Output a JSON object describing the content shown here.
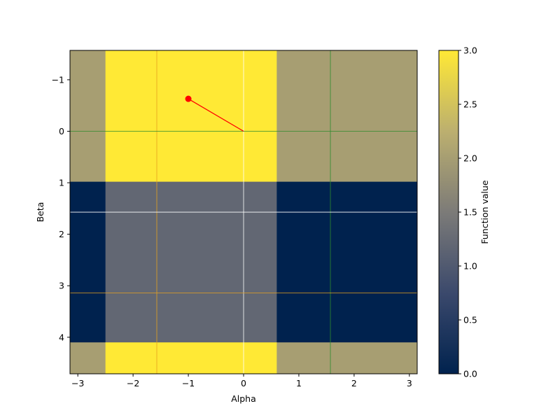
{
  "chart_data": {
    "type": "heatmap",
    "xlabel": "Alpha",
    "ylabel": "Beta",
    "colorbar_label": "Function value",
    "colormap": "cividis",
    "xlim": [
      -3.1416,
      3.1416
    ],
    "ylim": [
      4.71,
      -1.57
    ],
    "x_ticks": [
      -3,
      -2,
      -1,
      0,
      1,
      2,
      3
    ],
    "x_tick_labels": [
      "−3",
      "−2",
      "−1",
      "0",
      "1",
      "2",
      "3"
    ],
    "y_ticks": [
      -1,
      0,
      1,
      2,
      3,
      4
    ],
    "y_tick_labels": [
      "−1",
      "0",
      "1",
      "2",
      "3",
      "4"
    ],
    "x_edges": [
      -3.1416,
      -2.5,
      0.6,
      3.1416
    ],
    "y_edges": [
      -1.57,
      0.98,
      4.1,
      4.71
    ],
    "values": [
      [
        2,
        3,
        2
      ],
      [
        0,
        1.2,
        0
      ],
      [
        2,
        3,
        2
      ]
    ],
    "value_range": [
      0,
      3
    ],
    "colorbar_ticks": [
      0.0,
      0.5,
      1.0,
      1.5,
      2.0,
      2.5,
      3.0
    ],
    "colorbar_tick_labels": [
      "0.0",
      "0.5",
      "1.0",
      "1.5",
      "2.0",
      "2.5",
      "3.0"
    ],
    "reference_lines": [
      {
        "orientation": "vertical",
        "value": 0,
        "color": "#ffffff"
      },
      {
        "orientation": "vertical",
        "value": -1.5708,
        "color": "#e6a01e"
      },
      {
        "orientation": "vertical",
        "value": 1.5708,
        "color": "#2e8b2e"
      },
      {
        "orientation": "horizontal",
        "value": 0,
        "color": "#2e8b2e"
      },
      {
        "orientation": "horizontal",
        "value": 1.5708,
        "color": "#ffffff"
      },
      {
        "orientation": "horizontal",
        "value": 3.1416,
        "color": "#e6a01e"
      }
    ],
    "path": {
      "points": [
        [
          -1.0,
          -0.63
        ],
        [
          0.0,
          0.0
        ]
      ],
      "marker_point": [
        -1.0,
        -0.63
      ],
      "color": "#ff0000"
    }
  }
}
